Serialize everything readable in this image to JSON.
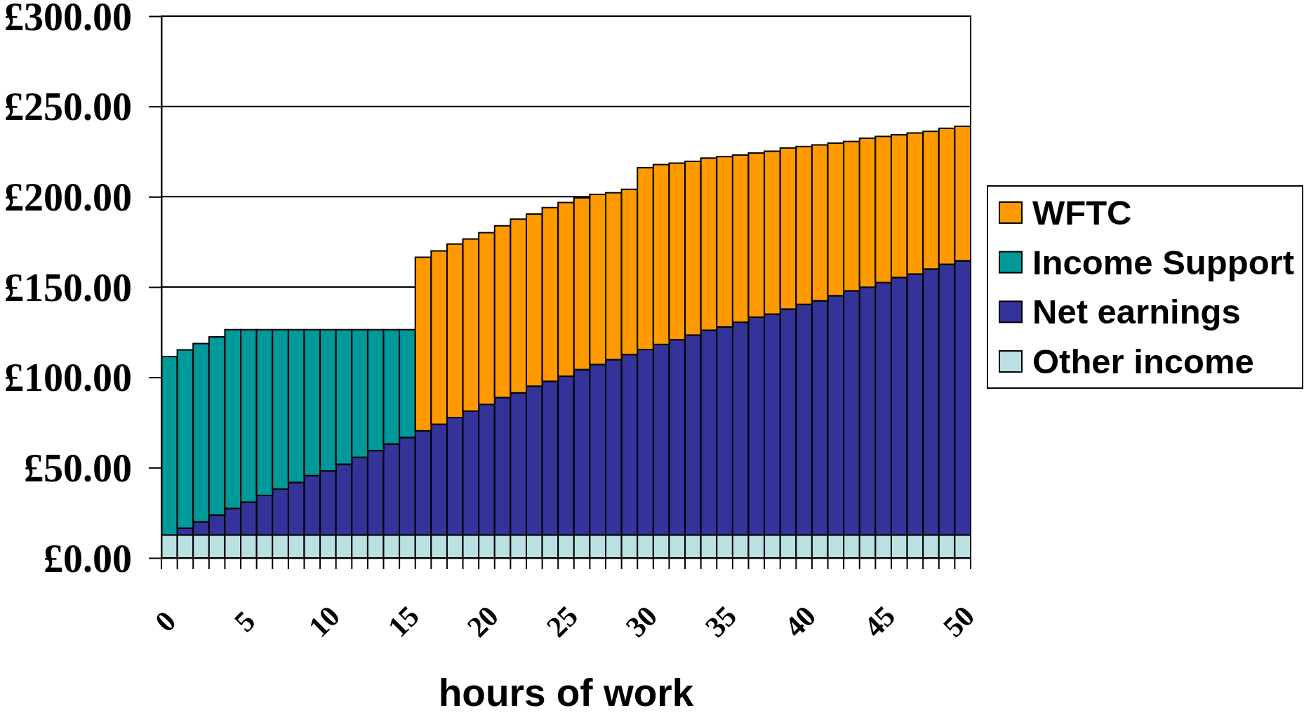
{
  "chart_data": {
    "type": "bar",
    "stacked": true,
    "xlabel": "hours of work",
    "categories": [
      "0",
      null,
      null,
      null,
      null,
      "5",
      null,
      null,
      null,
      null,
      "10",
      null,
      null,
      null,
      null,
      "15",
      null,
      null,
      null,
      null,
      "20",
      null,
      null,
      null,
      null,
      "25",
      null,
      null,
      null,
      null,
      "30",
      null,
      null,
      null,
      null,
      "35",
      null,
      null,
      null,
      null,
      "40",
      null,
      null,
      null,
      null,
      "45",
      null,
      null,
      null,
      null,
      "50"
    ],
    "series": [
      {
        "name": "Other income",
        "color": "#bbe0e3",
        "values": [
          12.7,
          12.7,
          12.7,
          12.7,
          12.7,
          12.7,
          12.7,
          12.7,
          12.7,
          12.7,
          12.7,
          12.7,
          12.7,
          12.7,
          12.7,
          12.7,
          12.7,
          12.7,
          12.7,
          12.7,
          12.7,
          12.7,
          12.7,
          12.7,
          12.7,
          12.7,
          12.7,
          12.7,
          12.7,
          12.7,
          12.7,
          12.7,
          12.7,
          12.7,
          12.7,
          12.7,
          12.7,
          12.7,
          12.7,
          12.7,
          12.7,
          12.7,
          12.7,
          12.7,
          12.7,
          12.7,
          12.7,
          12.7,
          12.7,
          12.7,
          12.7
        ]
      },
      {
        "name": "Net earnings",
        "color": "#333399",
        "values": [
          null,
          3.8,
          7.3,
          11.0,
          14.7,
          18.2,
          21.9,
          25.4,
          29.1,
          32.9,
          35.5,
          39.2,
          43.0,
          46.7,
          50.4,
          54.0,
          57.7,
          61.3,
          65.0,
          68.6,
          72.3,
          76.1,
          78.7,
          82.4,
          85.1,
          87.9,
          91.6,
          94.4,
          97.1,
          99.9,
          102.7,
          105.5,
          108.1,
          110.7,
          113.4,
          115.2,
          117.8,
          120.6,
          122.3,
          125.1,
          127.7,
          129.7,
          132.5,
          135.2,
          137.2,
          139.8,
          142.6,
          144.5,
          147.3,
          149.9,
          151.8
        ]
      },
      {
        "name": "Income Support",
        "color": "#009999",
        "values": [
          98.8,
          98.7,
          98.7,
          98.7,
          99.0,
          95.5,
          91.8,
          88.3,
          84.6,
          80.8,
          78.2,
          74.5,
          70.7,
          67.0,
          63.3,
          59.7,
          null,
          null,
          null,
          null,
          null,
          null,
          null,
          null,
          null,
          null,
          null,
          null,
          null,
          null,
          null,
          null,
          null,
          null,
          null,
          null,
          null,
          null,
          null,
          null,
          null,
          null,
          null,
          null,
          null,
          null,
          null,
          null,
          null,
          null,
          null
        ]
      },
      {
        "name": "WFTC",
        "color": "#ff9900",
        "values": [
          null,
          null,
          null,
          null,
          null,
          null,
          null,
          null,
          null,
          null,
          null,
          null,
          null,
          null,
          null,
          null,
          96.1,
          96.0,
          96.1,
          95.3,
          95.1,
          95.1,
          96.2,
          95.3,
          96.2,
          96.2,
          95.1,
          94.2,
          92.4,
          91.5,
          100.7,
          99.6,
          97.8,
          96.2,
          95.3,
          94.3,
          92.6,
          90.9,
          90.2,
          89.2,
          87.4,
          86.3,
          84.5,
          82.7,
          82.5,
          80.9,
          79.0,
          78.1,
          76.2,
          75.3,
          74.5
        ]
      }
    ],
    "ylim": [
      0,
      300
    ],
    "yticks": [
      {
        "value": 0,
        "label": "£0.00"
      },
      {
        "value": 50,
        "label": "£50.00"
      },
      {
        "value": 100,
        "label": "£100.00"
      },
      {
        "value": 150,
        "label": "£150.00"
      },
      {
        "value": 200,
        "label": "£200.00"
      },
      {
        "value": 250,
        "label": "£250.00"
      },
      {
        "value": 300,
        "label": "£300.00"
      }
    ],
    "grid": "y",
    "legend": "right"
  }
}
